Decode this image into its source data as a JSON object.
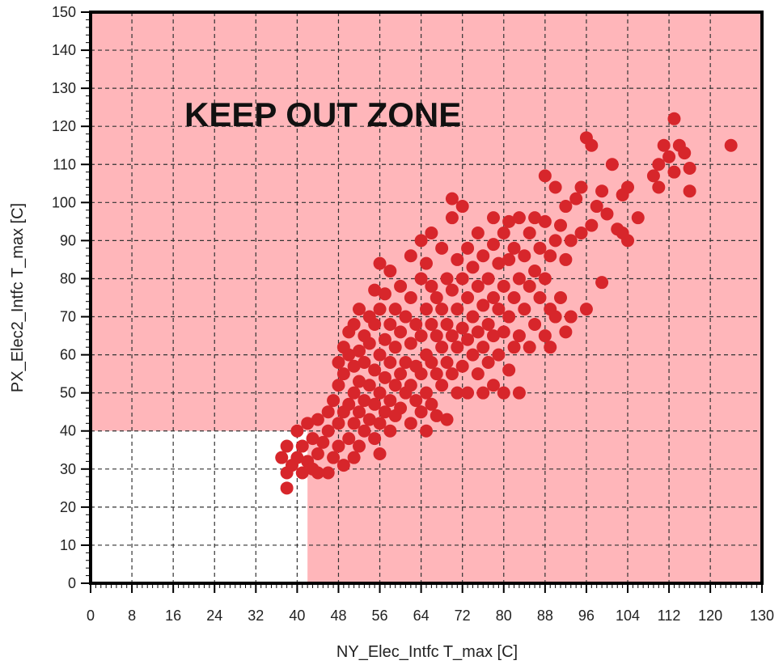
{
  "chart_data": {
    "type": "scatter",
    "title": "",
    "xlabel": "NY_Elec_Intfc T_max [C]",
    "ylabel": "PX_Elec2_Intfc T_max [C]",
    "xlim": [
      0,
      130
    ],
    "ylim": [
      0,
      150
    ],
    "x_ticks": [
      0,
      8,
      16,
      24,
      32,
      40,
      48,
      56,
      64,
      72,
      80,
      88,
      96,
      104,
      112,
      120,
      130
    ],
    "y_ticks": [
      0,
      10,
      20,
      30,
      40,
      50,
      60,
      70,
      80,
      90,
      100,
      110,
      120,
      130,
      140,
      150
    ],
    "grid": true,
    "annotation": "KEEP OUT ZONE",
    "keep_out_boundary": {
      "x_max_safe": 42,
      "y_max_safe": 40
    },
    "colors": {
      "keep_out_zone": "#ffb6ba",
      "points": "#d7262b",
      "frame": "#000000",
      "grid": "#333333"
    },
    "series": [
      {
        "marker": "filled-circle",
        "points": [
          [
            38,
            25
          ],
          [
            38,
            29
          ],
          [
            37,
            33
          ],
          [
            38,
            36
          ],
          [
            39,
            31
          ],
          [
            40,
            33
          ],
          [
            41,
            29
          ],
          [
            41,
            36
          ],
          [
            42,
            32
          ],
          [
            43,
            30
          ],
          [
            43,
            38
          ],
          [
            44,
            29
          ],
          [
            44,
            34
          ],
          [
            40,
            40
          ],
          [
            42,
            42
          ],
          [
            44,
            43
          ],
          [
            45,
            37
          ],
          [
            46,
            29
          ],
          [
            46,
            40
          ],
          [
            46,
            45
          ],
          [
            47,
            33
          ],
          [
            47,
            48
          ],
          [
            48,
            36
          ],
          [
            48,
            42
          ],
          [
            48,
            52
          ],
          [
            48,
            58
          ],
          [
            49,
            31
          ],
          [
            49,
            45
          ],
          [
            49,
            55
          ],
          [
            49,
            62
          ],
          [
            50,
            38
          ],
          [
            50,
            47
          ],
          [
            50,
            60
          ],
          [
            50,
            66
          ],
          [
            51,
            33
          ],
          [
            51,
            42
          ],
          [
            51,
            50
          ],
          [
            51,
            57
          ],
          [
            51,
            68
          ],
          [
            52,
            36
          ],
          [
            52,
            45
          ],
          [
            52,
            53
          ],
          [
            52,
            61
          ],
          [
            52,
            72
          ],
          [
            53,
            40
          ],
          [
            53,
            48
          ],
          [
            53,
            58
          ],
          [
            53,
            65
          ],
          [
            54,
            43
          ],
          [
            54,
            52
          ],
          [
            54,
            63
          ],
          [
            54,
            70
          ],
          [
            55,
            38
          ],
          [
            55,
            47
          ],
          [
            55,
            56
          ],
          [
            55,
            68
          ],
          [
            55,
            77
          ],
          [
            56,
            34
          ],
          [
            56,
            42
          ],
          [
            56,
            50
          ],
          [
            56,
            60
          ],
          [
            56,
            72
          ],
          [
            56,
            84
          ],
          [
            57,
            45
          ],
          [
            57,
            54
          ],
          [
            57,
            64
          ],
          [
            57,
            76
          ],
          [
            58,
            40
          ],
          [
            58,
            48
          ],
          [
            58,
            58
          ],
          [
            58,
            68
          ],
          [
            58,
            82
          ],
          [
            59,
            44
          ],
          [
            59,
            52
          ],
          [
            59,
            62
          ],
          [
            59,
            72
          ],
          [
            60,
            46
          ],
          [
            60,
            55
          ],
          [
            60,
            66
          ],
          [
            60,
            78
          ],
          [
            61,
            50
          ],
          [
            61,
            58
          ],
          [
            61,
            70
          ],
          [
            62,
            42
          ],
          [
            62,
            52
          ],
          [
            62,
            63
          ],
          [
            62,
            75
          ],
          [
            62,
            86
          ],
          [
            63,
            48
          ],
          [
            63,
            57
          ],
          [
            63,
            68
          ],
          [
            64,
            45
          ],
          [
            64,
            55
          ],
          [
            64,
            65
          ],
          [
            64,
            80
          ],
          [
            64,
            90
          ],
          [
            65,
            40
          ],
          [
            65,
            50
          ],
          [
            65,
            60
          ],
          [
            65,
            72
          ],
          [
            65,
            84
          ],
          [
            66,
            47
          ],
          [
            66,
            58
          ],
          [
            66,
            68
          ],
          [
            66,
            78
          ],
          [
            66,
            92
          ],
          [
            67,
            44
          ],
          [
            67,
            55
          ],
          [
            67,
            65
          ],
          [
            67,
            75
          ],
          [
            68,
            52
          ],
          [
            68,
            62
          ],
          [
            68,
            72
          ],
          [
            68,
            88
          ],
          [
            69,
            43
          ],
          [
            69,
            58
          ],
          [
            69,
            68
          ],
          [
            69,
            80
          ],
          [
            70,
            55
          ],
          [
            70,
            65
          ],
          [
            70,
            77
          ],
          [
            70,
            96
          ],
          [
            70,
            101
          ],
          [
            71,
            50
          ],
          [
            71,
            62
          ],
          [
            71,
            72
          ],
          [
            71,
            85
          ],
          [
            72,
            57
          ],
          [
            72,
            67
          ],
          [
            72,
            80
          ],
          [
            72,
            99
          ],
          [
            73,
            50
          ],
          [
            73,
            64
          ],
          [
            73,
            75
          ],
          [
            73,
            88
          ],
          [
            74,
            60
          ],
          [
            74,
            70
          ],
          [
            74,
            83
          ],
          [
            75,
            55
          ],
          [
            75,
            66
          ],
          [
            75,
            78
          ],
          [
            75,
            92
          ],
          [
            76,
            50
          ],
          [
            76,
            62
          ],
          [
            76,
            73
          ],
          [
            76,
            86
          ],
          [
            77,
            58
          ],
          [
            77,
            68
          ],
          [
            77,
            80
          ],
          [
            78,
            52
          ],
          [
            78,
            65
          ],
          [
            78,
            75
          ],
          [
            78,
            89
          ],
          [
            78,
            96
          ],
          [
            79,
            60
          ],
          [
            79,
            72
          ],
          [
            79,
            84
          ],
          [
            80,
            50
          ],
          [
            80,
            66
          ],
          [
            80,
            78
          ],
          [
            80,
            92
          ],
          [
            81,
            56
          ],
          [
            81,
            70
          ],
          [
            81,
            85
          ],
          [
            81,
            95
          ],
          [
            82,
            62
          ],
          [
            82,
            75
          ],
          [
            82,
            88
          ],
          [
            83,
            50
          ],
          [
            83,
            65
          ],
          [
            83,
            80
          ],
          [
            83,
            96
          ],
          [
            84,
            72
          ],
          [
            84,
            86
          ],
          [
            85,
            62
          ],
          [
            85,
            78
          ],
          [
            85,
            92
          ],
          [
            86,
            68
          ],
          [
            86,
            82
          ],
          [
            86,
            96
          ],
          [
            87,
            75
          ],
          [
            87,
            88
          ],
          [
            88,
            65
          ],
          [
            88,
            80
          ],
          [
            88,
            95
          ],
          [
            88,
            107
          ],
          [
            89,
            62
          ],
          [
            89,
            72
          ],
          [
            89,
            86
          ],
          [
            90,
            70
          ],
          [
            90,
            90
          ],
          [
            90,
            104
          ],
          [
            91,
            75
          ],
          [
            91,
            94
          ],
          [
            92,
            66
          ],
          [
            92,
            85
          ],
          [
            92,
            99
          ],
          [
            93,
            70
          ],
          [
            93,
            90
          ],
          [
            94,
            101
          ],
          [
            95,
            92
          ],
          [
            95,
            104
          ],
          [
            96,
            72
          ],
          [
            96,
            117
          ],
          [
            97,
            94
          ],
          [
            97,
            115
          ],
          [
            98,
            99
          ],
          [
            99,
            103
          ],
          [
            99,
            79
          ],
          [
            100,
            97
          ],
          [
            101,
            110
          ],
          [
            102,
            93
          ],
          [
            103,
            102
          ],
          [
            103,
            92
          ],
          [
            104,
            90
          ],
          [
            104,
            104
          ],
          [
            106,
            96
          ],
          [
            109,
            107
          ],
          [
            110,
            110
          ],
          [
            110,
            104
          ],
          [
            111,
            115
          ],
          [
            112,
            112
          ],
          [
            113,
            122
          ],
          [
            113,
            108
          ],
          [
            114,
            115
          ],
          [
            115,
            113
          ],
          [
            116,
            109
          ],
          [
            116,
            103
          ],
          [
            124,
            115
          ]
        ]
      }
    ]
  }
}
